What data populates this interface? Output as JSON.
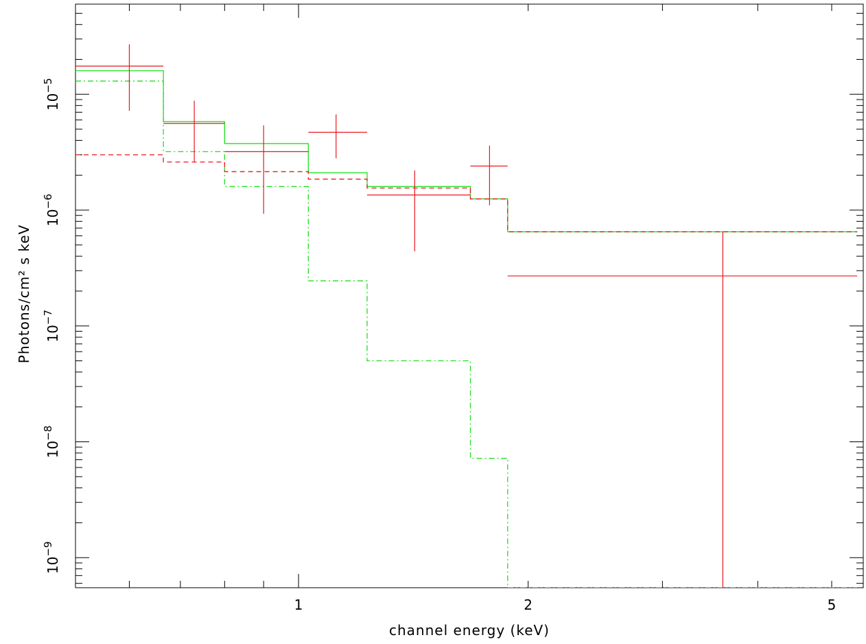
{
  "chart_data": {
    "type": "line",
    "xlabel": "channel energy (keV)",
    "ylabel": "Photons/cm² s keV",
    "x_scale": "log",
    "y_scale": "log",
    "xlim": [
      0.51,
      5.5
    ],
    "ylim": [
      5.5e-10,
      6e-05
    ],
    "x_tick_labels": [
      {
        "value": 1,
        "label": "1"
      },
      {
        "value": 2,
        "label": "2"
      },
      {
        "value": 5,
        "label": "5"
      }
    ],
    "y_tick_labels": [
      {
        "value": 1e-09,
        "mantissa": "10",
        "exp": "−9"
      },
      {
        "value": 1e-08,
        "mantissa": "10",
        "exp": "−8"
      },
      {
        "value": 1e-07,
        "mantissa": "10",
        "exp": "−7"
      },
      {
        "value": 1e-06,
        "mantissa": "10",
        "exp": "−6"
      },
      {
        "value": 1e-05,
        "mantissa": "10",
        "exp": "−5"
      }
    ],
    "colors": {
      "data": "#e8161c",
      "model": "#1ee01e",
      "axes": "#000000"
    },
    "data_points": [
      {
        "x": 0.6,
        "xlo": 0.51,
        "xhi": 0.665,
        "y": 1.75e-05,
        "ylo": 7.2e-06,
        "yhi": 2.7e-05
      },
      {
        "x": 0.73,
        "xlo": 0.665,
        "xhi": 0.8,
        "y": 5.6e-06,
        "ylo": 2.6e-06,
        "yhi": 8.8e-06
      },
      {
        "x": 0.9,
        "xlo": 0.8,
        "xhi": 1.03,
        "y": 3.2e-06,
        "ylo": 9.3e-07,
        "yhi": 5.4e-06
      },
      {
        "x": 1.12,
        "xlo": 1.03,
        "xhi": 1.23,
        "y": 4.7e-06,
        "ylo": 2.8e-06,
        "yhi": 6.7e-06
      },
      {
        "x": 1.42,
        "xlo": 1.23,
        "xhi": 1.68,
        "y": 1.35e-06,
        "ylo": 4.4e-07,
        "yhi": 2.2e-06
      },
      {
        "x": 1.78,
        "xlo": 1.68,
        "xhi": 1.88,
        "y": 2.4e-06,
        "ylo": 1.1e-06,
        "yhi": 3.6e-06
      },
      {
        "x": 3.6,
        "xlo": 1.88,
        "xhi": 5.4,
        "y": 2.7e-07,
        "ylo": 5.5e-10,
        "yhi": 6.5e-07
      }
    ],
    "bin_edges": [
      0.51,
      0.665,
      0.8,
      1.03,
      1.23,
      1.68,
      1.88,
      5.4
    ],
    "series": [
      {
        "values": [
          1.6e-05,
          5.8e-06,
          3.75e-06,
          2.1e-06,
          1.6e-06,
          1.25e-06,
          6.5e-07
        ],
        "color": "#1ee01e",
        "dash": "solid"
      },
      {
        "values": [
          1.3e-05,
          3.2e-06,
          1.6e-06,
          2.45e-07,
          5e-08,
          7.2e-09,
          5.5e-10
        ],
        "color": "#1ee01e",
        "dash": "dashdot"
      },
      {
        "values": [
          3e-06,
          2.6e-06,
          2.15e-06,
          1.85e-06,
          1.55e-06,
          1.25e-06,
          6.5e-07
        ],
        "color": "#e8161c",
        "dash": "dashed"
      }
    ]
  }
}
